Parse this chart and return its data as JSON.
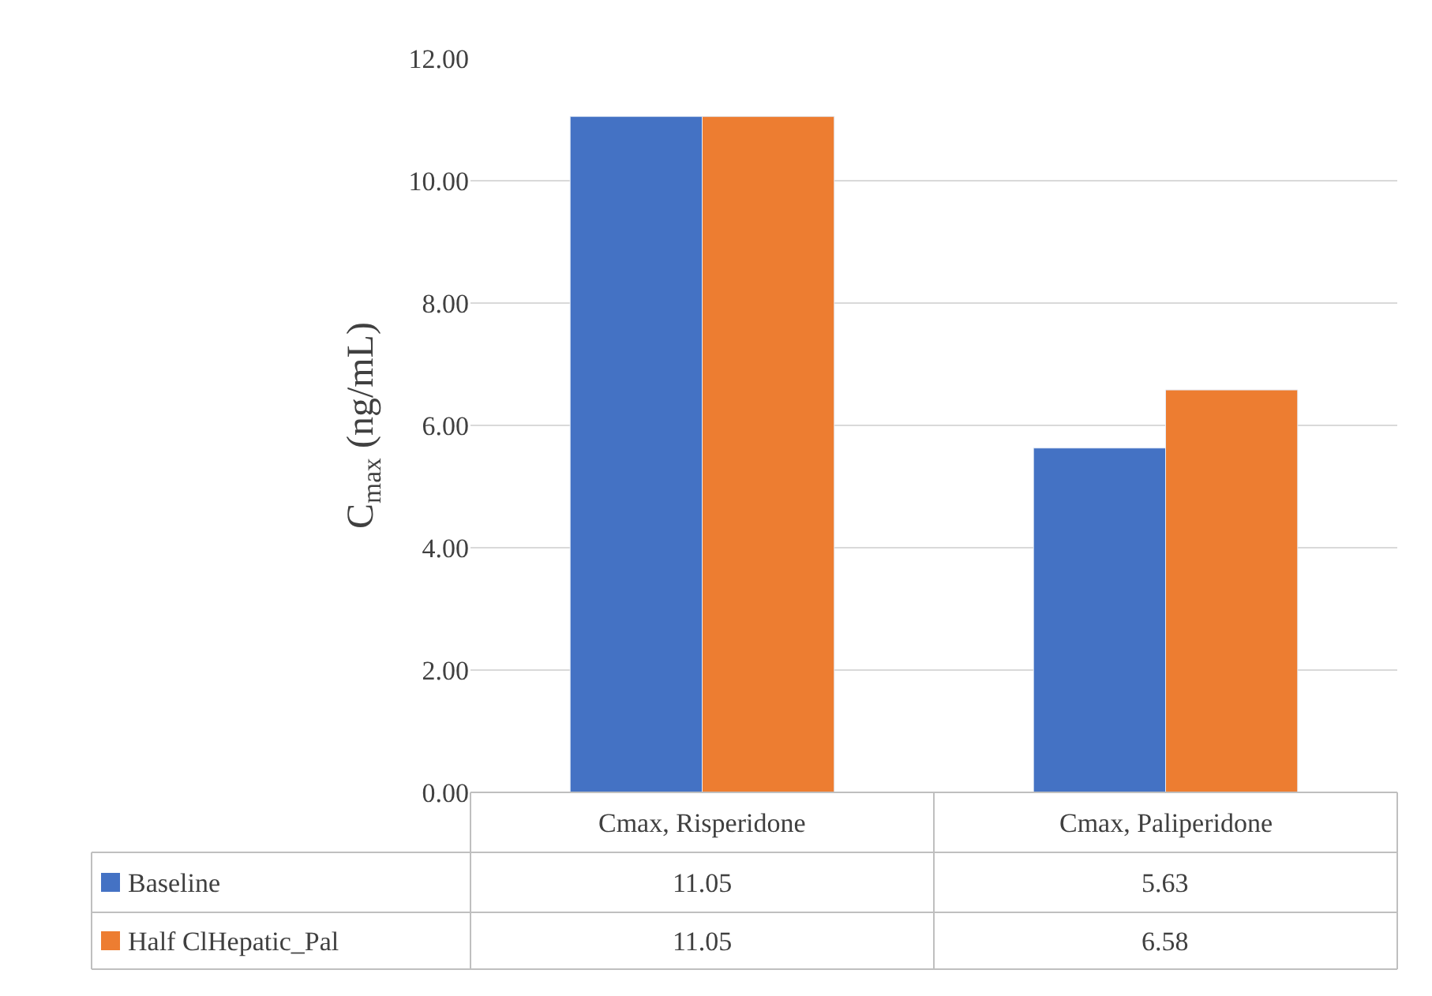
{
  "chart_data": {
    "type": "bar",
    "ylabel": "C$_{max}$ (ng/mL)",
    "categories": [
      "Cmax, Risperidone",
      "Cmax, Paliperidone"
    ],
    "series": [
      {
        "name": "Baseline",
        "color": "#4472c4",
        "values": [
          11.05,
          5.63
        ]
      },
      {
        "name": "Half ClHepatic_Pal",
        "color": "#ed7d31",
        "values": [
          11.05,
          6.58
        ]
      }
    ],
    "ylim": [
      0,
      12
    ],
    "yticks": [
      {
        "value": 0,
        "label": "0.00"
      },
      {
        "value": 2,
        "label": "2.00"
      },
      {
        "value": 4,
        "label": "4.00"
      },
      {
        "value": 6,
        "label": "6.00"
      },
      {
        "value": 8,
        "label": "8.00"
      },
      {
        "value": 10,
        "label": "10.00"
      },
      {
        "value": 12,
        "label": "12.00"
      }
    ],
    "grid": "y",
    "legend": "bottom",
    "data_labels": true,
    "value_labels": [
      [
        "11.05",
        "5.63"
      ],
      [
        "11.05",
        "6.58"
      ]
    ]
  }
}
